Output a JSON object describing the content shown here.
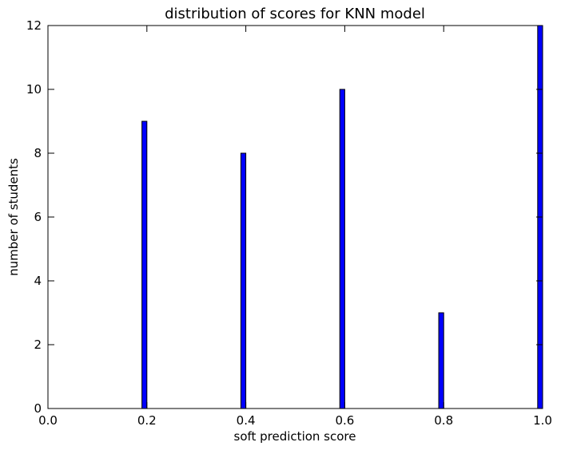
{
  "chart_data": {
    "type": "bar",
    "title": "distribution of scores for KNN model",
    "xlabel": "soft prediction score",
    "ylabel": "number of students",
    "xlim": [
      0.0,
      1.0
    ],
    "ylim": [
      0,
      12
    ],
    "xticks": [
      "0.0",
      "0.2",
      "0.4",
      "0.6",
      "0.8",
      "1.0"
    ],
    "yticks": [
      "0",
      "2",
      "4",
      "6",
      "8",
      "10",
      "12"
    ],
    "grid": false,
    "bar_color": "#0000ff",
    "bins": [
      {
        "x_start": 0.19,
        "x_end": 0.2,
        "count": 9
      },
      {
        "x_start": 0.39,
        "x_end": 0.4,
        "count": 8
      },
      {
        "x_start": 0.59,
        "x_end": 0.6,
        "count": 10
      },
      {
        "x_start": 0.79,
        "x_end": 0.8,
        "count": 3
      },
      {
        "x_start": 0.99,
        "x_end": 1.0,
        "count": 12
      }
    ]
  }
}
